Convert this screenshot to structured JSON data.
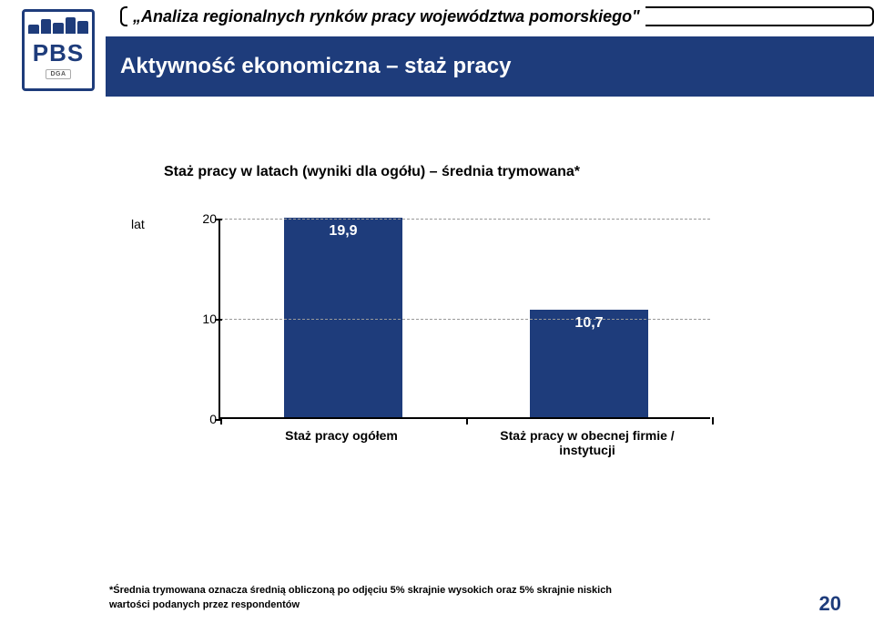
{
  "logo": {
    "text": "PBS",
    "subtext": "DGA"
  },
  "header": {
    "top_title": "„Analiza regionalnych rynków pracy województwa pomorskiego\"",
    "subtitle": "Aktywność ekonomiczna – staż pracy"
  },
  "chart": {
    "type": "bar",
    "title": "Staż pracy w latach (wyniki dla ogółu) – średnia trymowana*",
    "y_axis_label": "lat",
    "ylim": [
      0,
      20
    ],
    "yticks": [
      0,
      10,
      20
    ],
    "grid_color": "#999999",
    "axis_color": "#000000",
    "background_color": "#ffffff",
    "bar_color": "#1e3c7b",
    "value_color": "#ffffff",
    "label_fontsize": 14,
    "title_fontsize": 16,
    "value_fontsize": 16,
    "categories": [
      {
        "label": "Staż pracy ogółem",
        "value": 19.9,
        "value_label": "19,9"
      },
      {
        "label": "Staż pracy w obecnej firmie / instytucji",
        "value": 10.7,
        "value_label": "10,7"
      }
    ]
  },
  "footnote": "*Średnia trymowana oznacza średnią obliczoną po odjęciu 5% skrajnie wysokich oraz 5% skrajnie niskich wartości podanych przez respondentów",
  "page_number": "20"
}
